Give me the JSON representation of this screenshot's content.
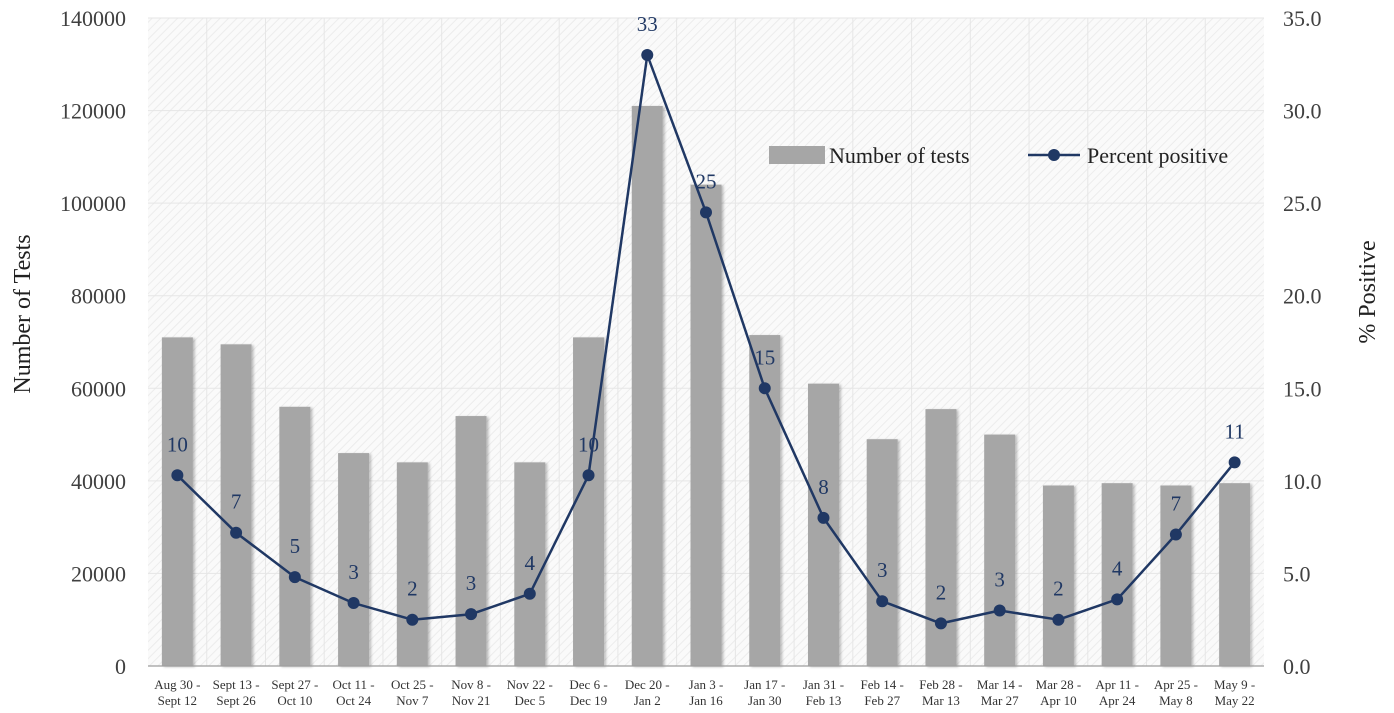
{
  "chart_data": {
    "type": "bar",
    "categories": [
      [
        "Aug 30 -",
        "Sept 12"
      ],
      [
        "Sept 13 -",
        "Sept 26"
      ],
      [
        "Sept 27 -",
        "Oct 10"
      ],
      [
        "Oct 11 -",
        "Oct 24"
      ],
      [
        "Oct 25 -",
        "Nov 7"
      ],
      [
        "Nov 8 -",
        "Nov 21"
      ],
      [
        "Nov 22 -",
        "Dec 5"
      ],
      [
        "Dec 6 -",
        "Dec 19"
      ],
      [
        "Dec 20 -",
        "Jan 2"
      ],
      [
        "Jan 3 -",
        "Jan 16"
      ],
      [
        "Jan 17 -",
        "Jan 30"
      ],
      [
        "Jan 31 -",
        "Feb 13"
      ],
      [
        "Feb 14 -",
        "Feb 27"
      ],
      [
        "Feb 28 -",
        "Mar 13"
      ],
      [
        "Mar 14 -",
        "Mar 27"
      ],
      [
        "Mar 28 -",
        "Apr 10"
      ],
      [
        "Apr 11 -",
        "Apr 24"
      ],
      [
        "Apr 25 -",
        "May 8"
      ],
      [
        "May 9 -",
        "May 22"
      ]
    ],
    "series": [
      {
        "name": "Number of tests",
        "type": "bar",
        "axis": "left",
        "color": "#a6a6a6",
        "values": [
          71000,
          69500,
          56000,
          46000,
          44000,
          54000,
          44000,
          71000,
          121000,
          104000,
          71500,
          61000,
          49000,
          55500,
          50000,
          39000,
          39500,
          39000,
          39500
        ]
      },
      {
        "name": "Percent positive",
        "type": "line",
        "axis": "right",
        "color": "#203864",
        "values": [
          10.3,
          7.2,
          4.8,
          3.4,
          2.5,
          2.8,
          3.9,
          10.3,
          33.0,
          24.5,
          15.0,
          8.0,
          3.5,
          2.3,
          3.0,
          2.5,
          3.6,
          7.1,
          11.0
        ],
        "labels": [
          "10",
          "7",
          "5",
          "3",
          "2",
          "3",
          "4",
          "10",
          "33",
          "25",
          "15",
          "8",
          "3",
          "2",
          "3",
          "2",
          "4",
          "7",
          "11"
        ]
      }
    ],
    "ylabel_left": "Number of Tests",
    "ylabel_right": "% Positive",
    "ylim_left": [
      0,
      140000
    ],
    "ylim_right": [
      0,
      35
    ],
    "yticks_left": [
      "0",
      "20000",
      "40000",
      "60000",
      "80000",
      "100000",
      "120000",
      "140000"
    ],
    "yticks_right": [
      "0.0",
      "5.0",
      "10.0",
      "15.0",
      "20.0",
      "25.0",
      "30.0",
      "35.0"
    ],
    "grid": true,
    "legend_position": "top-right",
    "legend": {
      "bars": "Number of tests",
      "line": "Percent positive"
    }
  }
}
